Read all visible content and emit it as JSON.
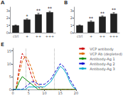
{
  "chart_data": [
    {
      "type": "bar",
      "title": "A",
      "categories": [
        "ctrl",
        "+",
        "++",
        "+++"
      ],
      "values": [
        1.0,
        1.8,
        2.5,
        2.8
      ],
      "errors": [
        0.05,
        0.1,
        0.15,
        0.12
      ],
      "color": "#222222",
      "annotations": [
        {
          "category": "+",
          "text": "*"
        },
        {
          "category": "++",
          "text": "**"
        },
        {
          "category": "+++",
          "text": "**"
        }
      ],
      "ylim": [
        0,
        3.5
      ],
      "yticks": [
        0,
        1,
        2,
        3
      ],
      "grid": false
    },
    {
      "type": "bar",
      "title": "B",
      "categories": [
        "ctrl",
        "+",
        "++",
        "+++"
      ],
      "values": [
        1.0,
        1.5,
        2.2,
        2.6
      ],
      "errors": [
        0.05,
        0.12,
        0.1,
        0.15
      ],
      "color": "#222222",
      "annotations": [
        {
          "category": "+",
          "text": "**"
        },
        {
          "category": "++",
          "text": "**"
        },
        {
          "category": "+++",
          "text": "**"
        }
      ],
      "ylim": [
        0,
        3.5
      ],
      "yticks": [
        0,
        1,
        2,
        3
      ],
      "grid": false
    },
    {
      "type": "line",
      "title": "E",
      "x": [
        0,
        1,
        2,
        3,
        4,
        5,
        6,
        7,
        8,
        9,
        10,
        11,
        12,
        13,
        14,
        15,
        16,
        17,
        18,
        19,
        20
      ],
      "series": [
        {
          "name": "VCP antibody",
          "color": "#cc0000",
          "line_style": "dashed",
          "values": [
            0,
            0,
            8,
            14,
            12,
            9,
            5,
            2,
            1,
            0,
            0,
            0,
            0,
            0,
            0,
            0,
            0,
            0,
            0,
            0,
            0
          ]
        },
        {
          "name": "VCP Ab (depleted)",
          "color": "#dd6600",
          "line_style": "dashed",
          "values": [
            0,
            0,
            6,
            11,
            13,
            11,
            8,
            4,
            2,
            1,
            0,
            0,
            0,
            0,
            0,
            0,
            0,
            0,
            0,
            0,
            0
          ]
        },
        {
          "name": "Antibody-Ag 1",
          "color": "#008800",
          "line_style": "solid",
          "values": [
            0,
            0,
            3,
            5,
            4,
            3,
            2,
            1,
            0,
            0,
            0,
            0,
            0,
            0,
            0,
            0,
            0,
            0,
            0,
            0,
            0
          ]
        },
        {
          "name": "Antibody-Ag 2",
          "color": "#0000cc",
          "line_style": "dashed",
          "values": [
            0,
            0,
            0,
            0,
            1,
            2,
            3,
            3,
            2,
            2,
            2,
            3,
            4,
            6,
            8,
            10,
            9,
            7,
            4,
            2,
            0
          ]
        },
        {
          "name": "Antibody-Ag 3",
          "color": "#00aacc",
          "line_style": "solid",
          "values": [
            0,
            0,
            0,
            0,
            0,
            1,
            1,
            1,
            1,
            1,
            1,
            2,
            3,
            5,
            7,
            9,
            8,
            6,
            3,
            1,
            0
          ]
        }
      ],
      "vlines": [
        4,
        13
      ],
      "xlim": [
        0,
        20
      ],
      "xticks": [
        0,
        5,
        10,
        15,
        20
      ],
      "ylim": [
        0,
        16
      ],
      "yticks": [
        0,
        5,
        10,
        15
      ],
      "legend": "upper right",
      "grid": false
    }
  ]
}
